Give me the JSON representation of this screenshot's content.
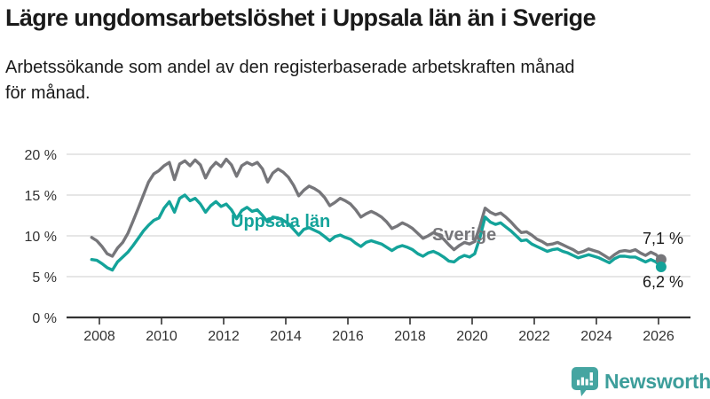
{
  "header": {
    "title": "Lägre ungdomsarbetslöshet i Uppsala län än i Sverige",
    "subtitle": "Arbetssökande som andel av den registerbaserade arbetskraften månad\nför månad."
  },
  "chart_data": {
    "type": "line",
    "title": "Lägre ungdomsarbetslöshet i Uppsala län än i Sverige",
    "subtitle": "Arbetssökande som andel av den registerbaserade arbetskraften månad för månad.",
    "unit": "%",
    "x_start": 2007.75,
    "x_step": 0.166667,
    "xlim": [
      2007.6,
      2026.6
    ],
    "ylim": [
      0,
      20
    ],
    "grid": true,
    "legend_position": "inline-labels",
    "grid_color": "#d8d8d8",
    "axis_color": "#333333",
    "series": [
      {
        "name": "Sverige",
        "color": "#76767a",
        "end_label": "7,1 %",
        "end_value": 7.1,
        "values": [
          9.8,
          9.4,
          8.7,
          7.8,
          7.5,
          8.5,
          9.2,
          10.3,
          11.8,
          13.4,
          15.0,
          16.6,
          17.6,
          18.0,
          18.6,
          19.0,
          16.9,
          18.8,
          19.2,
          18.6,
          19.3,
          18.7,
          17.1,
          18.3,
          19.0,
          18.5,
          19.4,
          18.7,
          17.3,
          18.6,
          19.0,
          18.7,
          19.0,
          18.2,
          16.6,
          17.7,
          18.2,
          17.8,
          17.2,
          16.2,
          14.9,
          15.6,
          16.1,
          15.8,
          15.4,
          14.7,
          13.7,
          14.1,
          14.6,
          14.3,
          13.9,
          13.2,
          12.3,
          12.7,
          13.0,
          12.7,
          12.3,
          11.7,
          10.9,
          11.2,
          11.6,
          11.3,
          10.9,
          10.3,
          9.7,
          10.0,
          10.4,
          10.1,
          9.6,
          8.9,
          8.3,
          8.8,
          9.2,
          9.0,
          9.3,
          11.2,
          13.4,
          12.9,
          12.6,
          12.8,
          12.3,
          11.7,
          11.0,
          10.4,
          10.5,
          10.1,
          9.6,
          9.3,
          8.9,
          9.0,
          9.2,
          8.9,
          8.6,
          8.3,
          7.9,
          8.1,
          8.4,
          8.2,
          8.0,
          7.6,
          7.2,
          7.7,
          8.1,
          8.2,
          8.1,
          8.3,
          7.9,
          7.6,
          8.0,
          7.7,
          7.1
        ]
      },
      {
        "name": "Uppsala län",
        "color": "#14a39a",
        "end_label": "6,2 %",
        "end_value": 6.2,
        "values": [
          7.1,
          7.0,
          6.6,
          6.1,
          5.8,
          6.8,
          7.4,
          8.0,
          8.8,
          9.7,
          10.6,
          11.3,
          11.9,
          12.2,
          13.4,
          14.2,
          12.9,
          14.6,
          15.0,
          14.3,
          14.6,
          13.9,
          12.9,
          13.7,
          14.2,
          13.6,
          13.9,
          13.2,
          12.1,
          13.1,
          13.5,
          13.0,
          13.2,
          12.5,
          11.7,
          12.3,
          12.2,
          11.9,
          11.5,
          10.8,
          10.1,
          10.8,
          11.0,
          10.7,
          10.4,
          9.9,
          9.4,
          9.9,
          10.1,
          9.8,
          9.6,
          9.1,
          8.7,
          9.2,
          9.4,
          9.2,
          9.0,
          8.6,
          8.2,
          8.6,
          8.8,
          8.6,
          8.3,
          7.8,
          7.5,
          7.9,
          8.1,
          7.8,
          7.4,
          6.9,
          6.8,
          7.3,
          7.6,
          7.4,
          7.8,
          9.8,
          12.3,
          11.7,
          11.4,
          11.6,
          11.1,
          10.6,
          10.0,
          9.4,
          9.5,
          9.0,
          8.7,
          8.4,
          8.1,
          8.3,
          8.4,
          8.1,
          7.9,
          7.6,
          7.3,
          7.5,
          7.7,
          7.5,
          7.3,
          7.0,
          6.7,
          7.2,
          7.5,
          7.5,
          7.4,
          7.4,
          7.1,
          6.8,
          7.1,
          6.8,
          6.2
        ]
      }
    ],
    "yticks": [
      {
        "value": 0,
        "label": "0 %"
      },
      {
        "value": 5,
        "label": "5 %"
      },
      {
        "value": 10,
        "label": "10 %"
      },
      {
        "value": 15,
        "label": "15 %"
      },
      {
        "value": 20,
        "label": "20 %"
      }
    ],
    "xticks": [
      {
        "value": 2008,
        "label": "2008"
      },
      {
        "value": 2010,
        "label": "2010"
      },
      {
        "value": 2012,
        "label": "2012"
      },
      {
        "value": 2014,
        "label": "2014"
      },
      {
        "value": 2016,
        "label": "2016"
      },
      {
        "value": 2018,
        "label": "2018"
      },
      {
        "value": 2020,
        "label": "2020"
      },
      {
        "value": 2022,
        "label": "2022"
      },
      {
        "value": 2024,
        "label": "2024"
      },
      {
        "value": 2026,
        "label": "2026"
      }
    ]
  },
  "footer": {
    "brand": "Newsworthy",
    "brand_color": "#3d9e9b",
    "logo_icon_color": "#45a5a1"
  }
}
